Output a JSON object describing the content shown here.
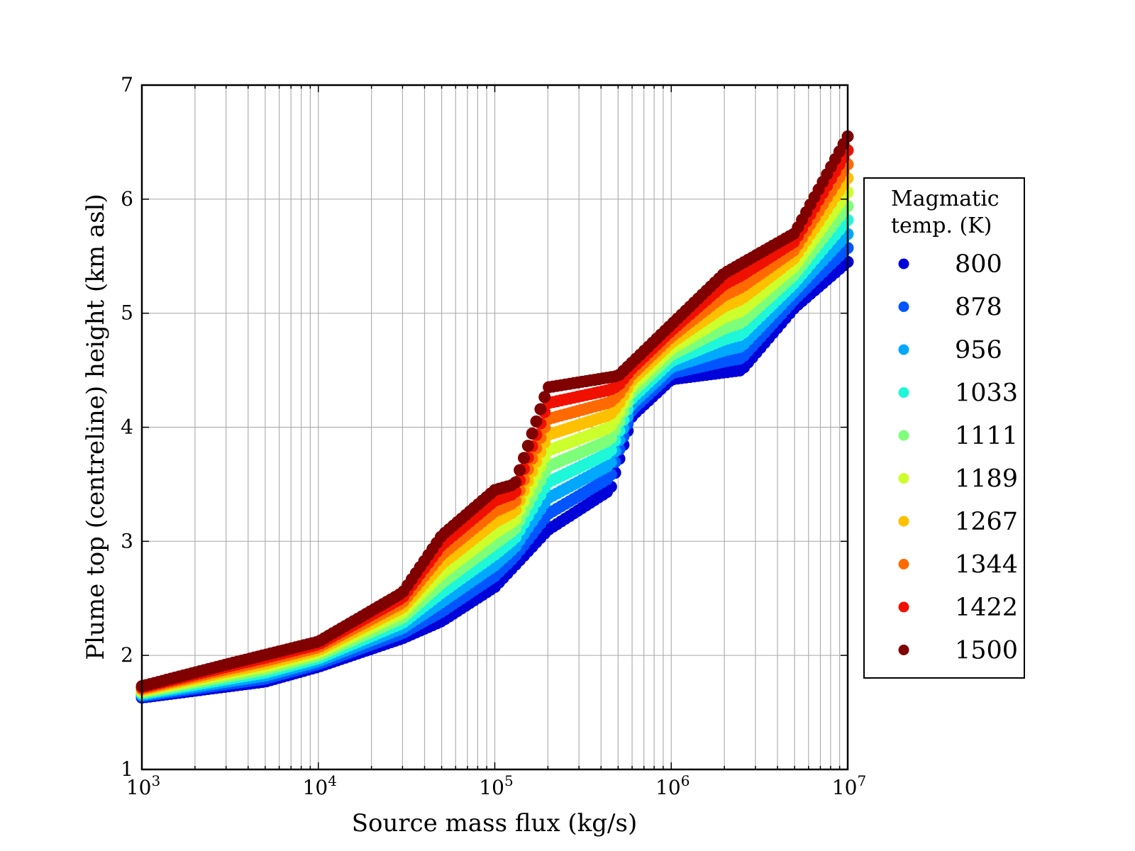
{
  "chart_data": {
    "type": "scatter",
    "title": "",
    "xlabel": "Source mass flux (kg/s)",
    "ylabel": "Plume top (centreline) height (km asl)",
    "xscale": "log",
    "xlim": [
      1000,
      10000000
    ],
    "ylim": [
      1,
      7
    ],
    "grid": true,
    "x_ticks": [
      {
        "base": "10",
        "exp": "3"
      },
      {
        "base": "10",
        "exp": "4"
      },
      {
        "base": "10",
        "exp": "5"
      },
      {
        "base": "10",
        "exp": "6"
      },
      {
        "base": "10",
        "exp": "7"
      }
    ],
    "y_ticks": [
      "1",
      "2",
      "3",
      "4",
      "5",
      "6",
      "7"
    ],
    "legend": {
      "title_line1": "Magmatic",
      "title_line2": "temp. (K)",
      "placement": "outside-right",
      "entries": [
        {
          "label": "800",
          "color": "#0000d8"
        },
        {
          "label": "878",
          "color": "#0055ff"
        },
        {
          "label": "956",
          "color": "#00a8ff"
        },
        {
          "label": "1033",
          "color": "#1ef7d8"
        },
        {
          "label": "1111",
          "color": "#7dff7a"
        },
        {
          "label": "1189",
          "color": "#ccff2b"
        },
        {
          "label": "1267",
          "color": "#ffc000"
        },
        {
          "label": "1344",
          "color": "#ff6a00"
        },
        {
          "label": "1422",
          "color": "#f01000"
        },
        {
          "label": "1500",
          "color": "#800000"
        }
      ]
    },
    "series_trend": {
      "temperatures": [
        800,
        878,
        956,
        1033,
        1111,
        1189,
        1267,
        1344,
        1422,
        1500
      ],
      "low_temp_height": [
        [
          1000,
          1.63
        ],
        [
          5000,
          1.77
        ],
        [
          10000,
          1.9
        ],
        [
          30000,
          2.15
        ],
        [
          50000,
          2.3
        ],
        [
          100000,
          2.6
        ],
        [
          200000,
          3.1
        ],
        [
          450000,
          3.45
        ],
        [
          600000,
          4.1
        ],
        [
          1000000,
          4.42
        ],
        [
          2500000,
          4.5
        ],
        [
          5000000,
          5.05
        ],
        [
          10000000,
          5.45
        ]
      ],
      "high_temp_height": [
        [
          1000,
          1.73
        ],
        [
          3000,
          1.92
        ],
        [
          10000,
          2.12
        ],
        [
          30000,
          2.55
        ],
        [
          50000,
          3.05
        ],
        [
          100000,
          3.45
        ],
        [
          130000,
          3.5
        ],
        [
          200000,
          4.35
        ],
        [
          500000,
          4.45
        ],
        [
          1000000,
          4.9
        ],
        [
          2000000,
          5.35
        ],
        [
          5000000,
          5.7
        ],
        [
          10000000,
          6.55
        ]
      ]
    }
  }
}
